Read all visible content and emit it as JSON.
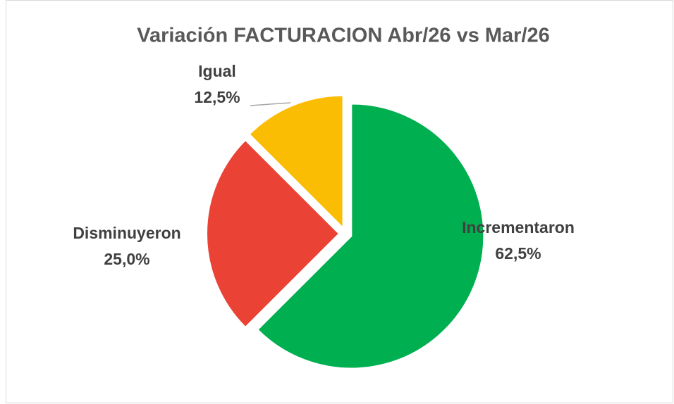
{
  "chart_data": {
    "type": "pie",
    "title": "Variación FACTURACION Abr/26 vs Mar/26",
    "categories": [
      "Incrementaron",
      "Disminuyeron",
      "Igual"
    ],
    "values": [
      62.5,
      25.0,
      12.5
    ],
    "value_labels": [
      "62,5%",
      "25,0%",
      "12,5%"
    ],
    "colors": [
      "#00b050",
      "#ea4335",
      "#fbbc04"
    ]
  }
}
